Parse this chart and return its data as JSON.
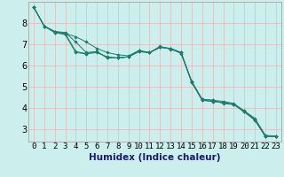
{
  "xlabel": "Humidex (Indice chaleur)",
  "bg_color": "#cceeed",
  "grid_color": "#ddbbbb",
  "line_color": "#1e7b6e",
  "xlim": [
    -0.5,
    23.5
  ],
  "ylim": [
    2.4,
    9.0
  ],
  "xticks": [
    0,
    1,
    2,
    3,
    4,
    5,
    6,
    7,
    8,
    9,
    10,
    11,
    12,
    13,
    14,
    15,
    16,
    17,
    18,
    19,
    20,
    21,
    22,
    23
  ],
  "yticks": [
    3,
    4,
    5,
    6,
    7,
    8
  ],
  "tick_fontsize": 6.5,
  "xlabel_fontsize": 7.5,
  "series": [
    [
      8.75,
      7.85,
      7.55,
      7.45,
      6.6,
      6.55,
      6.65,
      6.35,
      6.35,
      6.4,
      6.65,
      6.6,
      6.85,
      6.8,
      6.55,
      5.25,
      4.35,
      4.3,
      4.25,
      4.15,
      3.85,
      3.45,
      2.65,
      2.65
    ],
    [
      8.75,
      7.85,
      7.55,
      7.5,
      6.65,
      6.55,
      6.6,
      6.4,
      6.35,
      6.4,
      6.7,
      6.6,
      6.9,
      6.75,
      6.6,
      5.2,
      4.4,
      4.35,
      4.2,
      4.15,
      3.8,
      3.4,
      2.65,
      2.65
    ],
    [
      8.75,
      7.85,
      7.6,
      7.5,
      7.35,
      7.1,
      6.8,
      6.6,
      6.5,
      6.45,
      6.7,
      6.6,
      6.85,
      6.8,
      6.6,
      5.25,
      4.4,
      4.35,
      4.3,
      4.2,
      3.85,
      3.5,
      2.7,
      2.65
    ],
    [
      8.75,
      7.85,
      7.6,
      7.55,
      7.1,
      6.6,
      6.65,
      6.35,
      6.35,
      6.4,
      6.65,
      6.6,
      6.85,
      6.8,
      6.6,
      5.2,
      4.35,
      4.3,
      4.25,
      4.15,
      3.8,
      3.45,
      2.65,
      2.65
    ]
  ]
}
